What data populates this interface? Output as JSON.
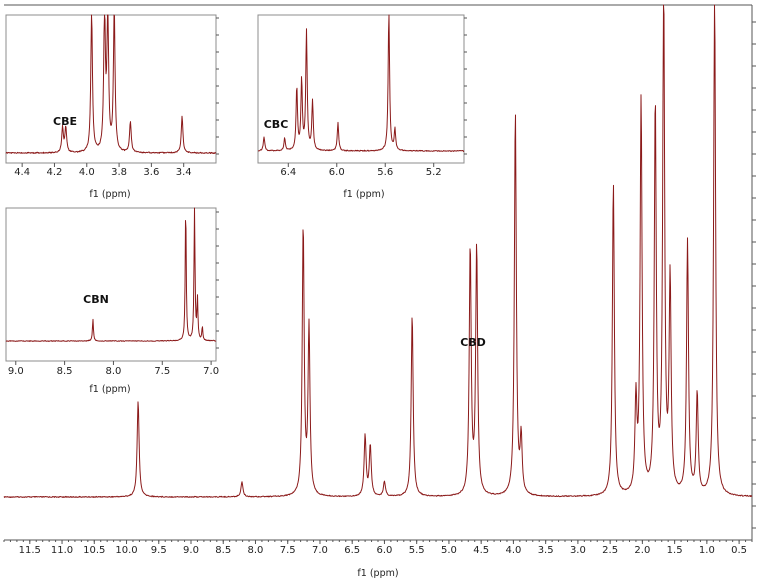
{
  "chart_data": [
    {
      "type": "line",
      "title": "",
      "xlabel": "f1 (ppm)",
      "ylabel": "",
      "xlim": [
        11.9,
        0.3
      ],
      "x_reversed": true,
      "ticks": [
        "11.5",
        "11.0",
        "10.5",
        "10.0",
        "9.5",
        "9.0",
        "8.5",
        "8.0",
        "7.5",
        "7.0",
        "6.5",
        "6.0",
        "5.5",
        "5.0",
        "4.5",
        "4.0",
        "3.5",
        "3.0",
        "2.5",
        "2.0",
        "1.5",
        "1.0",
        "0.5"
      ],
      "peaks": [
        {
          "x": 9.82,
          "y": 0.19
        },
        {
          "x": 8.21,
          "y": 0.03
        },
        {
          "x": 7.26,
          "y": 0.53
        },
        {
          "x": 7.17,
          "y": 0.33
        },
        {
          "x": 6.3,
          "y": 0.12
        },
        {
          "x": 6.22,
          "y": 0.1
        },
        {
          "x": 6.0,
          "y": 0.03
        },
        {
          "x": 5.57,
          "y": 0.36
        },
        {
          "x": 4.67,
          "y": 0.49
        },
        {
          "x": 4.57,
          "y": 0.49
        },
        {
          "x": 3.97,
          "y": 0.76
        },
        {
          "x": 3.88,
          "y": 0.11
        },
        {
          "x": 2.45,
          "y": 0.62
        },
        {
          "x": 2.1,
          "y": 0.18
        },
        {
          "x": 2.02,
          "y": 0.78
        },
        {
          "x": 1.8,
          "y": 0.77
        },
        {
          "x": 1.67,
          "y": 1.0
        },
        {
          "x": 1.57,
          "y": 0.42
        },
        {
          "x": 1.3,
          "y": 0.5
        },
        {
          "x": 1.15,
          "y": 0.2
        },
        {
          "x": 0.88,
          "y": 1.0
        }
      ],
      "annotations": [
        {
          "text": "CBD",
          "x": 4.62
        }
      ]
    },
    {
      "type": "line",
      "title": "",
      "xlabel": "f1 (ppm)",
      "xlim": [
        4.5,
        3.2
      ],
      "x_reversed": true,
      "ticks": [
        "4.4",
        "4.2",
        "4.0",
        "3.8",
        "3.6",
        "3.4"
      ],
      "peaks": [
        {
          "x": 4.15,
          "y": 0.18
        },
        {
          "x": 4.13,
          "y": 0.18
        },
        {
          "x": 3.97,
          "y": 1.0
        },
        {
          "x": 3.89,
          "y": 1.0
        },
        {
          "x": 3.87,
          "y": 1.0
        },
        {
          "x": 3.83,
          "y": 1.0
        },
        {
          "x": 3.73,
          "y": 0.22
        },
        {
          "x": 3.41,
          "y": 0.26
        }
      ],
      "annotations": [
        {
          "text": "CBE",
          "x": 4.17
        }
      ]
    },
    {
      "type": "line",
      "title": "",
      "xlabel": "f1 (ppm)",
      "xlim": [
        6.65,
        4.95
      ],
      "x_reversed": true,
      "ticks": [
        "6.4",
        "6.0",
        "5.6",
        "5.2"
      ],
      "peaks": [
        {
          "x": 6.6,
          "y": 0.1
        },
        {
          "x": 6.43,
          "y": 0.09
        },
        {
          "x": 6.33,
          "y": 0.45
        },
        {
          "x": 6.29,
          "y": 0.5
        },
        {
          "x": 6.25,
          "y": 0.85
        },
        {
          "x": 6.2,
          "y": 0.35
        },
        {
          "x": 5.99,
          "y": 0.2
        },
        {
          "x": 5.57,
          "y": 1.0
        },
        {
          "x": 5.52,
          "y": 0.15
        }
      ],
      "annotations": [
        {
          "text": "CBC",
          "x": 6.55
        }
      ]
    },
    {
      "type": "line",
      "title": "",
      "xlabel": "f1 (ppm)",
      "xlim": [
        9.1,
        6.95
      ],
      "x_reversed": true,
      "ticks": [
        "9.0",
        "8.5",
        "8.0",
        "7.5",
        "7.0"
      ],
      "peaks": [
        {
          "x": 8.21,
          "y": 0.16
        },
        {
          "x": 7.26,
          "y": 1.0
        },
        {
          "x": 7.17,
          "y": 1.0
        },
        {
          "x": 7.14,
          "y": 0.3
        },
        {
          "x": 7.09,
          "y": 0.1
        }
      ],
      "annotations": [
        {
          "text": "CBN",
          "x": 8.21
        }
      ]
    }
  ]
}
